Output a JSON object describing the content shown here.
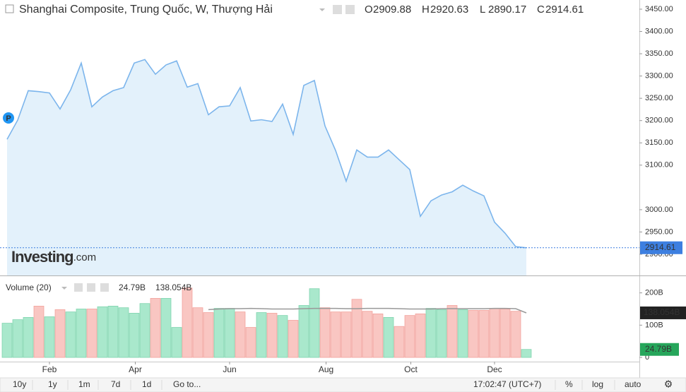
{
  "header": {
    "title": "Shanghai Composite, Trung Quốc, W, Thượng Hải",
    "ohlc": [
      {
        "label": "O",
        "value": 2909.88
      },
      {
        "label": "H",
        "value": 2920.63
      },
      {
        "label": "L",
        "value": 2890.17
      },
      {
        "label": "C",
        "value": 2914.61
      }
    ]
  },
  "marker": "P",
  "watermark": [
    "Investing",
    ".com"
  ],
  "chart_data": [
    {
      "type": "area",
      "color": "#7cb5ec",
      "fill": "#e3f1fb",
      "values": [
        3158,
        3201,
        3267,
        3265,
        3262,
        3226,
        3269,
        3329,
        3231,
        3253,
        3267,
        3274,
        3329,
        3337,
        3304,
        3325,
        3334,
        3275,
        3283,
        3213,
        3231,
        3233,
        3274,
        3199,
        3202,
        3198,
        3237,
        3169,
        3279,
        3290,
        3188,
        3133,
        3064,
        3134,
        3118,
        3118,
        3134,
        3112,
        3090,
        2985,
        3020,
        3033,
        3040,
        3055,
        3042,
        3031,
        2972,
        2947,
        2917,
        2914.61
      ],
      "xlim": [
        -0.667,
        59.667
      ],
      "xticks": [
        {
          "value": 4,
          "label": "Feb"
        },
        {
          "value": 12.1,
          "label": "Apr"
        },
        {
          "value": 21,
          "label": "Jun"
        },
        {
          "value": 30.1,
          "label": "Aug"
        },
        {
          "value": 38.1,
          "label": "Oct"
        },
        {
          "value": 46,
          "label": "Dec"
        }
      ],
      "ylim": [
        2852.4,
        3470.6
      ],
      "yticks": [
        {
          "value": 3450,
          "label": "3450.00"
        },
        {
          "value": 3400,
          "label": "3400.00"
        },
        {
          "value": 3350,
          "label": "3350.00"
        },
        {
          "value": 3300,
          "label": "3300.00"
        },
        {
          "value": 3250,
          "label": "3250.00"
        },
        {
          "value": 3200,
          "label": "3200.00"
        },
        {
          "value": 3150,
          "label": "3150.00"
        },
        {
          "value": 3100,
          "label": "3100.00"
        },
        {
          "value": 3000,
          "label": "3000.00"
        },
        {
          "value": 2950,
          "label": "2950.00"
        },
        {
          "value": 2900,
          "label": "2900.00"
        }
      ]
    },
    {
      "type": "bar",
      "title": "Volume (20)",
      "up_color": "#a9e8cc",
      "down_color": "#f9c6c2",
      "values": [
        106,
        117,
        124,
        159,
        126,
        148,
        141,
        150,
        150,
        157,
        159,
        154,
        137,
        167,
        183,
        183,
        93,
        215,
        154,
        139,
        152,
        152,
        141,
        93,
        139,
        137,
        130,
        115,
        161,
        213,
        154,
        141,
        141,
        180,
        143,
        135,
        124,
        96,
        130,
        135,
        152,
        148,
        161,
        148,
        146,
        146,
        152,
        150,
        143,
        24.79
      ],
      "colors": [
        "up",
        "up",
        "up",
        "down",
        "up",
        "down",
        "up",
        "up",
        "down",
        "up",
        "up",
        "up",
        "up",
        "up",
        "down",
        "up",
        "up",
        "down",
        "down",
        "down",
        "up",
        "up",
        "down",
        "down",
        "up",
        "down",
        "up",
        "down",
        "up",
        "up",
        "down",
        "down",
        "down",
        "down",
        "down",
        "down",
        "up",
        "down",
        "down",
        "down",
        "up",
        "up",
        "down",
        "up",
        "down",
        "down",
        "down",
        "down",
        "down",
        "up"
      ],
      "value_labels": [
        null,
        null,
        null,
        null,
        null,
        null,
        null,
        null,
        null,
        null,
        null,
        null,
        null,
        null,
        null,
        null,
        null,
        null,
        null,
        null,
        null,
        null,
        null,
        null,
        null,
        null,
        null,
        null,
        null,
        null,
        null,
        null,
        null,
        null,
        null,
        null,
        null,
        null,
        null,
        null,
        null,
        null,
        null,
        null,
        null,
        null,
        null,
        null,
        null,
        "24.79B"
      ],
      "ma_color": "#999999",
      "ma_values": [
        null,
        null,
        null,
        null,
        null,
        null,
        null,
        null,
        null,
        null,
        null,
        null,
        null,
        null,
        null,
        null,
        null,
        null,
        null,
        148,
        150,
        151,
        151,
        152,
        151,
        150,
        150,
        150,
        151,
        152,
        152,
        152,
        151,
        151,
        152,
        152,
        152,
        151,
        150,
        150,
        150,
        151,
        151,
        151,
        151,
        151,
        152,
        152,
        151,
        138.054
      ],
      "ma_value_labels": [
        null,
        null,
        null,
        null,
        null,
        null,
        null,
        null,
        null,
        null,
        null,
        null,
        null,
        null,
        null,
        null,
        null,
        null,
        null,
        null,
        null,
        null,
        null,
        null,
        null,
        null,
        null,
        null,
        null,
        null,
        null,
        null,
        null,
        null,
        null,
        null,
        null,
        null,
        null,
        null,
        null,
        null,
        null,
        null,
        null,
        null,
        null,
        null,
        null,
        "138.054B"
      ],
      "xlim": [
        -0.667,
        59.667
      ],
      "ylim": [
        -13,
        243
      ],
      "yticks": [
        {
          "value": 200,
          "label": "200B"
        },
        {
          "value": 100,
          "label": "100B"
        },
        0
      ]
    }
  ],
  "toolbar": {
    "ranges": [
      "10y",
      "1y",
      "1m",
      "7d",
      "1d"
    ],
    "goto": "Go to...",
    "time": "17:02:47 (UTC+7)",
    "options": [
      "%",
      "log",
      "auto"
    ]
  }
}
